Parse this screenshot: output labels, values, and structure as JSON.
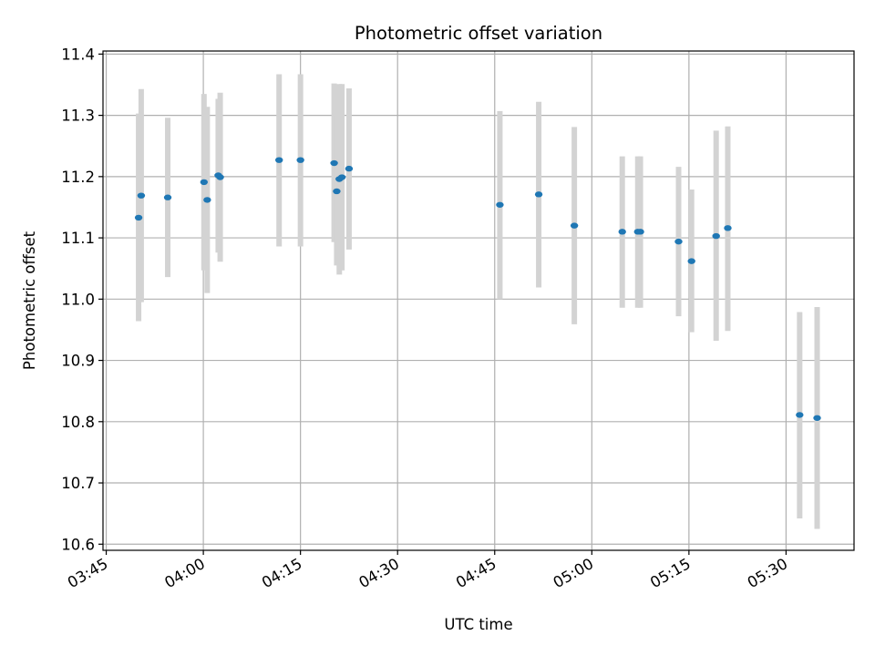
{
  "chart_data": {
    "type": "scatter",
    "title": "Photometric offset variation",
    "xlabel": "UTC time",
    "ylabel": "Photometric offset",
    "grid": true,
    "x_unit": "minutes since 03:45 UTC",
    "xlim": [
      -0.5,
      115.5
    ],
    "ylim": [
      10.59,
      11.405
    ],
    "x_ticks": [
      {
        "value": 0,
        "label": "03:45"
      },
      {
        "value": 15,
        "label": "04:00"
      },
      {
        "value": 30,
        "label": "04:15"
      },
      {
        "value": 45,
        "label": "04:30"
      },
      {
        "value": 60,
        "label": "04:45"
      },
      {
        "value": 75,
        "label": "05:00"
      },
      {
        "value": 90,
        "label": "05:15"
      },
      {
        "value": 105,
        "label": "05:30"
      }
    ],
    "y_ticks": [
      {
        "value": 10.6,
        "label": "10.6"
      },
      {
        "value": 10.7,
        "label": "10.7"
      },
      {
        "value": 10.8,
        "label": "10.8"
      },
      {
        "value": 10.9,
        "label": "10.9"
      },
      {
        "value": 11.0,
        "label": "11.0"
      },
      {
        "value": 11.1,
        "label": "11.1"
      },
      {
        "value": 11.2,
        "label": "11.2"
      },
      {
        "value": 11.3,
        "label": "11.3"
      },
      {
        "value": 11.4,
        "label": "11.4"
      }
    ],
    "series": [
      {
        "name": "offset",
        "marker_color": "#1f77b4",
        "errorbar_color": "#d3d3d3",
        "points": [
          {
            "x": 5.0,
            "y": 11.133,
            "ylow": 10.964,
            "yhigh": 11.303
          },
          {
            "x": 5.4,
            "y": 11.169,
            "ylow": 10.995,
            "yhigh": 11.343
          },
          {
            "x": 9.5,
            "y": 11.166,
            "ylow": 11.036,
            "yhigh": 11.296
          },
          {
            "x": 15.1,
            "y": 11.191,
            "ylow": 11.047,
            "yhigh": 11.335
          },
          {
            "x": 15.6,
            "y": 11.162,
            "ylow": 11.01,
            "yhigh": 11.314
          },
          {
            "x": 17.3,
            "y": 11.202,
            "ylow": 11.076,
            "yhigh": 11.327
          },
          {
            "x": 17.6,
            "y": 11.199,
            "ylow": 11.061,
            "yhigh": 11.337
          },
          {
            "x": 26.7,
            "y": 11.227,
            "ylow": 11.086,
            "yhigh": 11.367
          },
          {
            "x": 30.0,
            "y": 11.227,
            "ylow": 11.086,
            "yhigh": 11.367
          },
          {
            "x": 35.2,
            "y": 11.222,
            "ylow": 11.093,
            "yhigh": 11.352
          },
          {
            "x": 35.6,
            "y": 11.176,
            "ylow": 11.055,
            "yhigh": 11.3
          },
          {
            "x": 36.0,
            "y": 11.196,
            "ylow": 11.04,
            "yhigh": 11.351
          },
          {
            "x": 36.4,
            "y": 11.199,
            "ylow": 11.047,
            "yhigh": 11.351
          },
          {
            "x": 37.5,
            "y": 11.213,
            "ylow": 11.081,
            "yhigh": 11.344
          },
          {
            "x": 60.8,
            "y": 11.154,
            "ylow": 11.0,
            "yhigh": 11.307
          },
          {
            "x": 66.8,
            "y": 11.171,
            "ylow": 11.019,
            "yhigh": 11.322
          },
          {
            "x": 72.3,
            "y": 11.12,
            "ylow": 10.959,
            "yhigh": 11.281
          },
          {
            "x": 79.7,
            "y": 11.11,
            "ylow": 10.986,
            "yhigh": 11.233
          },
          {
            "x": 82.1,
            "y": 11.11,
            "ylow": 10.986,
            "yhigh": 11.233
          },
          {
            "x": 82.5,
            "y": 11.11,
            "ylow": 10.986,
            "yhigh": 11.233
          },
          {
            "x": 88.4,
            "y": 11.094,
            "ylow": 10.972,
            "yhigh": 11.216
          },
          {
            "x": 90.4,
            "y": 11.062,
            "ylow": 10.946,
            "yhigh": 11.179
          },
          {
            "x": 94.2,
            "y": 11.103,
            "ylow": 10.932,
            "yhigh": 11.275
          },
          {
            "x": 96.0,
            "y": 11.116,
            "ylow": 10.948,
            "yhigh": 11.282
          },
          {
            "x": 107.1,
            "y": 10.811,
            "ylow": 10.642,
            "yhigh": 10.979
          },
          {
            "x": 109.8,
            "y": 10.806,
            "ylow": 10.625,
            "yhigh": 10.987
          }
        ]
      }
    ]
  }
}
